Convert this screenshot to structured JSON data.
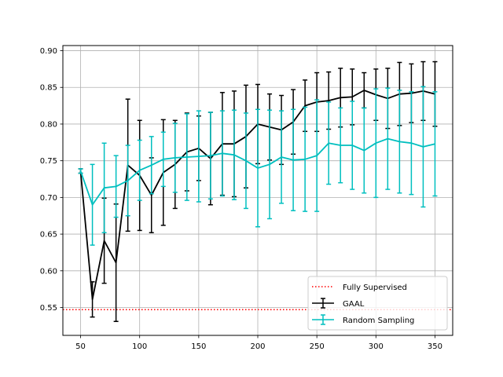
{
  "chart_data": {
    "type": "line",
    "title": "",
    "xlabel": "",
    "ylabel": "",
    "xlim": [
      35,
      365
    ],
    "ylim": [
      0.512,
      0.907
    ],
    "x_ticks": [
      50,
      100,
      150,
      200,
      250,
      300,
      350
    ],
    "x_tick_labels": [
      "50",
      "100",
      "150",
      "200",
      "250",
      "300",
      "350"
    ],
    "y_ticks": [
      0.55,
      0.6,
      0.65,
      0.7,
      0.75,
      0.8,
      0.85,
      0.9
    ],
    "y_tick_labels": [
      "0.55",
      "0.60",
      "0.65",
      "0.70",
      "0.75",
      "0.80",
      "0.85",
      "0.90"
    ],
    "grid": true,
    "legend_position": "bottom-right",
    "x": [
      50,
      60,
      70,
      80,
      90,
      100,
      110,
      120,
      130,
      140,
      150,
      160,
      170,
      180,
      190,
      200,
      210,
      220,
      230,
      240,
      250,
      260,
      270,
      280,
      290,
      300,
      310,
      320,
      330,
      340,
      350
    ],
    "reference_line": {
      "name": "Fully Supervised",
      "value": 0.547,
      "color": "#ff0000"
    },
    "series": [
      {
        "name": "GAAL",
        "color": "#000000",
        "values": [
          0.736,
          0.561,
          0.641,
          0.611,
          0.744,
          0.73,
          0.703,
          0.734,
          0.745,
          0.762,
          0.767,
          0.753,
          0.773,
          0.773,
          0.783,
          0.8,
          0.796,
          0.792,
          0.803,
          0.825,
          0.83,
          0.832,
          0.836,
          0.837,
          0.846,
          0.84,
          0.835,
          0.841,
          0.842,
          0.845,
          0.841
        ],
        "errors": [
          0.003,
          0.024,
          0.058,
          0.08,
          0.09,
          0.075,
          0.051,
          0.072,
          0.06,
          0.053,
          0.044,
          0.063,
          0.07,
          0.072,
          0.07,
          0.054,
          0.045,
          0.047,
          0.044,
          0.035,
          0.04,
          0.039,
          0.04,
          0.038,
          0.024,
          0.035,
          0.041,
          0.043,
          0.04,
          0.04,
          0.044
        ]
      },
      {
        "name": "Random Sampling",
        "color": "#00bfbf",
        "values": [
          0.736,
          0.69,
          0.713,
          0.715,
          0.723,
          0.737,
          0.744,
          0.752,
          0.754,
          0.755,
          0.756,
          0.757,
          0.76,
          0.758,
          0.75,
          0.74,
          0.745,
          0.755,
          0.751,
          0.752,
          0.757,
          0.774,
          0.771,
          0.771,
          0.764,
          0.774,
          0.78,
          0.776,
          0.774,
          0.769,
          0.773
        ],
        "errors": [
          0.003,
          0.055,
          0.061,
          0.042,
          0.048,
          0.041,
          0.039,
          0.037,
          0.047,
          0.059,
          0.062,
          0.059,
          0.058,
          0.061,
          0.065,
          0.08,
          0.074,
          0.063,
          0.069,
          0.071,
          0.076,
          0.056,
          0.051,
          0.06,
          0.058,
          0.074,
          0.069,
          0.07,
          0.07,
          0.082,
          0.071
        ]
      }
    ]
  }
}
